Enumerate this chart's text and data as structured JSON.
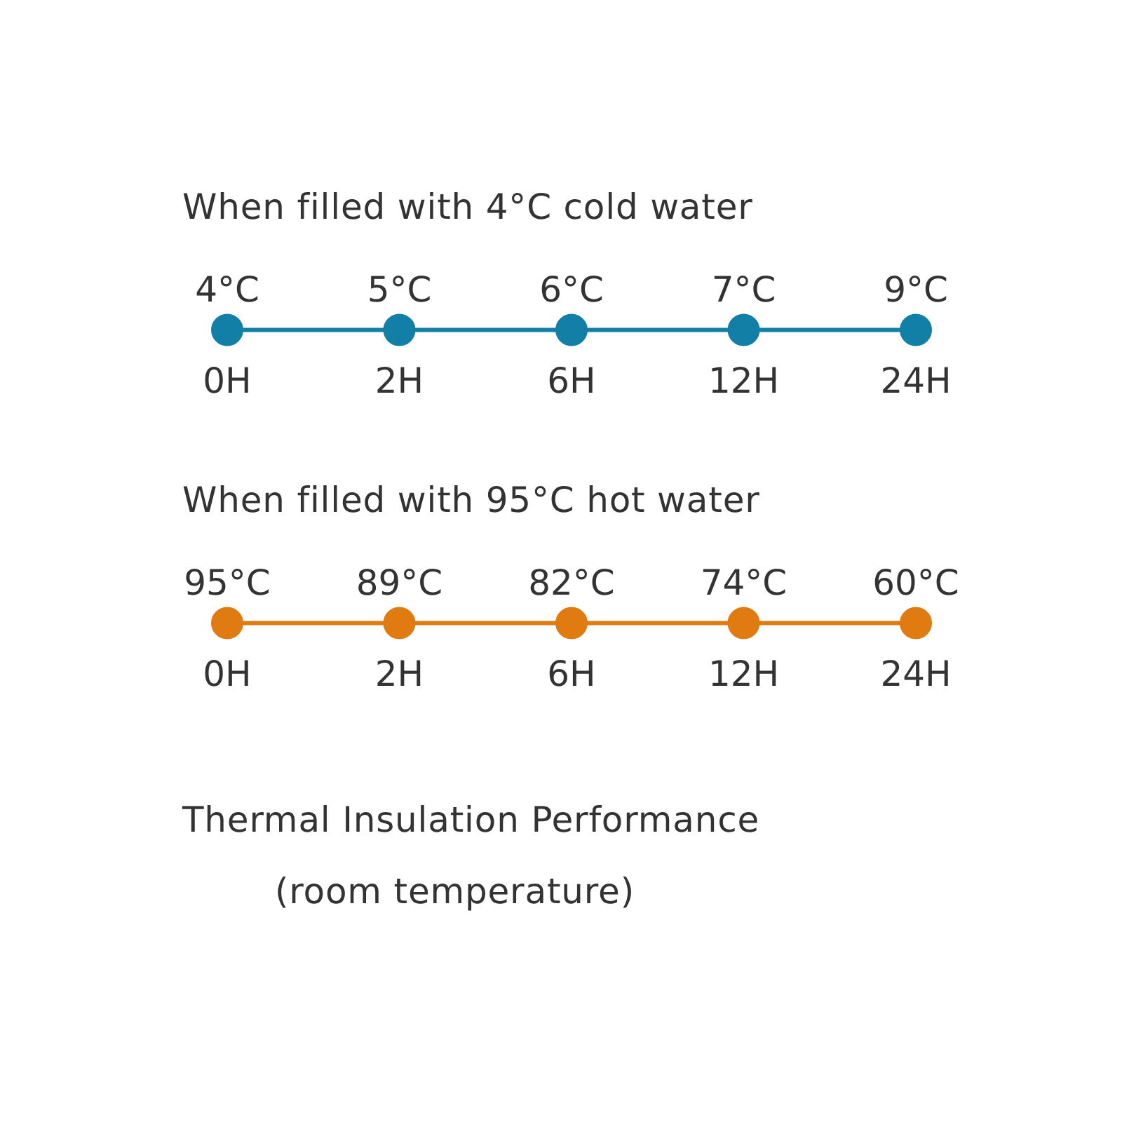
{
  "chart_data": [
    {
      "type": "other",
      "title": "When filled with 4°C cold water",
      "categories": [
        "0H",
        "2H",
        "6H",
        "12H",
        "24H"
      ],
      "values": [
        4,
        5,
        6,
        7,
        9
      ],
      "value_labels": [
        "4°C",
        "5°C",
        "6°C",
        "7°C",
        "9°C"
      ],
      "color": "#127fa6"
    },
    {
      "type": "other",
      "title": "When filled with 95°C hot water",
      "categories": [
        "0H",
        "2H",
        "6H",
        "12H",
        "24H"
      ],
      "values": [
        95,
        89,
        82,
        74,
        60
      ],
      "value_labels": [
        "95°C",
        "89°C",
        "82°C",
        "74°C",
        "60°C"
      ],
      "color": "#e07b12",
      "annotations": [
        "Thermal Insulation Performance",
        "(room temperature)"
      ]
    }
  ]
}
